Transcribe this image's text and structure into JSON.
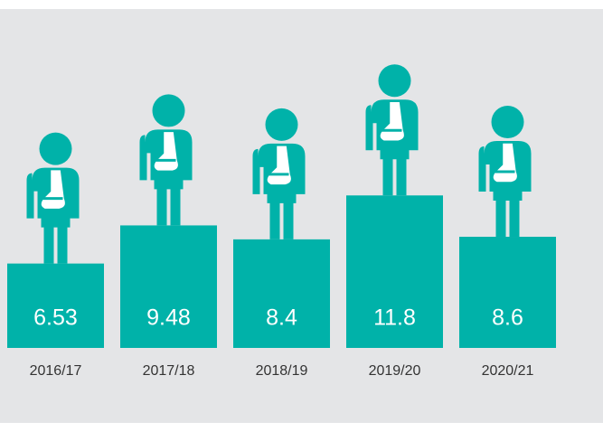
{
  "chart_data": {
    "type": "bar",
    "categories": [
      "2016/17",
      "2017/18",
      "2018/19",
      "2019/20",
      "2020/21"
    ],
    "values": [
      6.53,
      9.48,
      8.4,
      11.8,
      8.6
    ],
    "color": "#00b2a9"
  }
}
